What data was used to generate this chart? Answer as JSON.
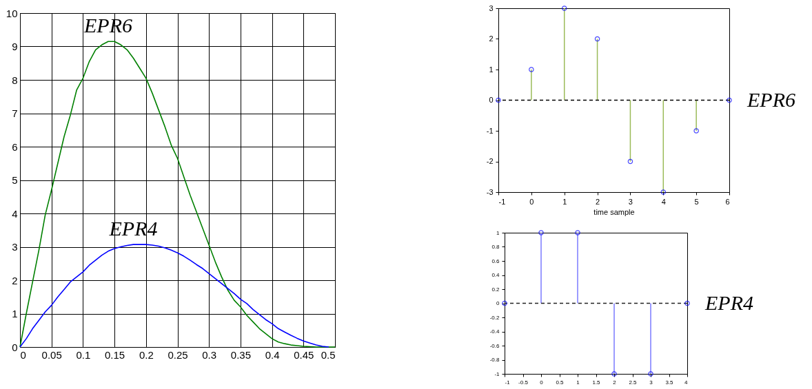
{
  "chart_data": [
    {
      "type": "line",
      "grid": true,
      "xlim": [
        0,
        0.5
      ],
      "ylim": [
        0,
        10
      ],
      "xticks": [
        0,
        0.05,
        0.1,
        0.15,
        0.2,
        0.25,
        0.3,
        0.35,
        0.4,
        0.45,
        0.5
      ],
      "yticks": [
        0,
        1,
        2,
        3,
        4,
        5,
        6,
        7,
        8,
        9,
        10
      ],
      "x": [
        0,
        0.01,
        0.02,
        0.03,
        0.04,
        0.05,
        0.06,
        0.07,
        0.08,
        0.09,
        0.1,
        0.11,
        0.12,
        0.13,
        0.14,
        0.15,
        0.16,
        0.17,
        0.18,
        0.19,
        0.2,
        0.21,
        0.22,
        0.23,
        0.24,
        0.25,
        0.26,
        0.27,
        0.28,
        0.29,
        0.3,
        0.31,
        0.32,
        0.33,
        0.34,
        0.35,
        0.36,
        0.37,
        0.38,
        0.39,
        0.4,
        0.41,
        0.42,
        0.43,
        0.44,
        0.45,
        0.46,
        0.47,
        0.48,
        0.49,
        0.5
      ],
      "series": [
        {
          "name": "EPR6",
          "color": "#008000",
          "values": [
            0,
            1.0,
            1.95,
            2.9,
            3.95,
            4.7,
            5.5,
            6.3,
            6.95,
            7.7,
            8.05,
            8.55,
            8.9,
            9.05,
            9.15,
            9.15,
            9.05,
            8.9,
            8.65,
            8.35,
            8.05,
            7.6,
            7.1,
            6.6,
            6.05,
            5.65,
            5.1,
            4.55,
            4.05,
            3.55,
            3.05,
            2.55,
            2.1,
            1.7,
            1.4,
            1.2,
            0.95,
            0.75,
            0.55,
            0.4,
            0.25,
            0.15,
            0.1,
            0.06,
            0.04,
            0.02,
            0.01,
            0,
            0,
            0,
            0
          ]
        },
        {
          "name": "EPR4",
          "color": "#0000ff",
          "values": [
            0,
            0.25,
            0.55,
            0.8,
            1.05,
            1.25,
            1.5,
            1.72,
            1.95,
            2.1,
            2.25,
            2.45,
            2.6,
            2.75,
            2.87,
            2.95,
            3.0,
            3.04,
            3.07,
            3.07,
            3.07,
            3.05,
            3.02,
            2.97,
            2.9,
            2.82,
            2.72,
            2.6,
            2.47,
            2.35,
            2.2,
            2.05,
            1.9,
            1.75,
            1.6,
            1.43,
            1.3,
            1.12,
            0.97,
            0.82,
            0.7,
            0.55,
            0.45,
            0.35,
            0.26,
            0.18,
            0.12,
            0.06,
            0.02,
            0,
            null
          ]
        }
      ]
    },
    {
      "type": "lollipop",
      "xlabel": "time sample",
      "marker": "circle",
      "xlim": [
        -1,
        6
      ],
      "ylim": [
        -3,
        3
      ],
      "xticks": [
        -1,
        0,
        1,
        2,
        3,
        4,
        5,
        6
      ],
      "yticks": [
        -3,
        -2,
        -1,
        0,
        1,
        2,
        3
      ],
      "x": [
        -1,
        0,
        1,
        2,
        3,
        4,
        5,
        6
      ],
      "series": [
        {
          "name": "EPR6",
          "color": "#0000ff",
          "values": [
            0,
            1,
            3,
            2,
            -2,
            -3,
            -1,
            0
          ]
        }
      ],
      "ref_lines": [
        {
          "axis": "y",
          "value": 0,
          "color": "#000000",
          "line_style": "dashed"
        }
      ]
    },
    {
      "type": "lollipop",
      "marker": "circle",
      "xlim": [
        -1,
        4
      ],
      "ylim": [
        -1,
        1
      ],
      "xticks": [
        -1,
        -0.5,
        0,
        0.5,
        1,
        1.5,
        2,
        2.5,
        3,
        3.5,
        4
      ],
      "yticks": [
        -1,
        -0.8,
        -0.6,
        -0.4,
        -0.2,
        0,
        0.2,
        0.4,
        0.6,
        0.8,
        1
      ],
      "x": [
        -1,
        0,
        1,
        2,
        3,
        4
      ],
      "series": [
        {
          "name": "EPR4",
          "color": "#0000ff",
          "values": [
            0,
            1,
            1,
            -1,
            -1,
            0
          ]
        }
      ],
      "ref_lines": [
        {
          "axis": "y",
          "value": 0,
          "color": "#222222",
          "line_style": "dashed"
        }
      ]
    }
  ]
}
